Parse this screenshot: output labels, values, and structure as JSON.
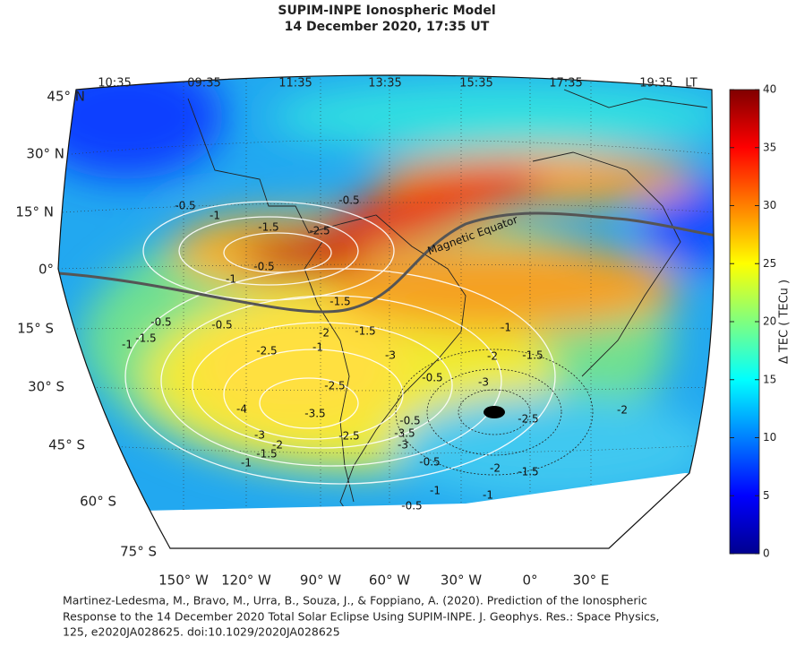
{
  "title": [
    "SUPIM-INPE Ionospheric Model",
    "14 December 2020, 17:35 UT"
  ],
  "local_time_labels": [
    "10:35",
    "09:35",
    "11:35",
    "13:35",
    "15:35",
    "17:35",
    "19:35"
  ],
  "local_time_unit": "LT",
  "latitude_labels": [
    "45° N",
    "30° N",
    "15° N",
    "0°",
    "15° S",
    "30° S",
    "45° S",
    "60° S",
    "75° S"
  ],
  "longitude_labels": [
    "150° W",
    "120° W",
    "90° W",
    "60° W",
    "30° W",
    "0°",
    "30° E"
  ],
  "magnetic_equator_label": "Magnetic Equator",
  "contour_labels": [
    -0.5,
    -1,
    -1.5,
    -2.5,
    -0.5,
    -1,
    -1.5,
    -0.5,
    -1.5,
    -1,
    -0.5,
    -2,
    -1.5,
    -1,
    -2.5,
    -3,
    -2,
    -1.5,
    -1,
    -0.5,
    -3,
    -2.5,
    -3.5,
    -4,
    -2.5,
    -2,
    -0.5,
    -3.5,
    -3,
    -2.5,
    -3,
    -2,
    -1.5,
    -1,
    -0.5,
    -2,
    -1.5,
    -1,
    -1,
    -0.5,
    -0.5
  ],
  "colorbar": {
    "label": "Δ TEC ( TECu )",
    "lim": [
      0,
      40
    ],
    "ticks": [
      0,
      5,
      10,
      15,
      20,
      25,
      30,
      35,
      40
    ]
  },
  "citation": [
    "Martinez-Ledesma, M., Bravo, M., Urra, B., Souza, J., & Foppiano, A. (2020). Prediction of the Ionospheric",
    "Response to the 14 December 2020 Total Solar Eclipse Using SUPIM-INPE. J. Geophys. Res.: Space Physics,",
    "125, e2020JA028625. doi:10.1029/2020JA028625"
  ]
}
